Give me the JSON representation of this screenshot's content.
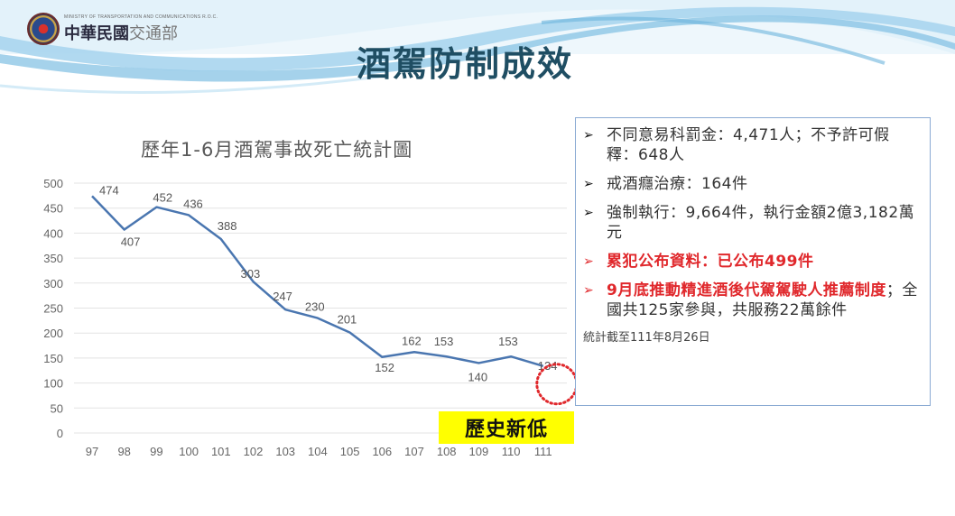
{
  "header": {
    "logo_en": "MINISTRY OF TRANSPORTATION AND COMMUNICATIONS R.O.C.",
    "logo_zh_main": "中華民國",
    "logo_zh_sub": "交通部",
    "title": "酒駕防制成效"
  },
  "chart_data": {
    "type": "line",
    "title": "歷年1-6月酒駕事故死亡統計圖",
    "categories": [
      "97",
      "98",
      "99",
      "100",
      "101",
      "102",
      "103",
      "104",
      "105",
      "106",
      "107",
      "108",
      "109",
      "110",
      "111"
    ],
    "values": [
      474,
      407,
      452,
      436,
      388,
      303,
      247,
      230,
      201,
      152,
      162,
      153,
      140,
      153,
      134
    ],
    "yticks": [
      0,
      50,
      100,
      150,
      200,
      250,
      300,
      350,
      400,
      450,
      500
    ],
    "ylim": [
      0,
      500
    ],
    "xlabel": "",
    "ylabel": "",
    "grid": true,
    "line_color": "#4a76b0",
    "highlight": {
      "category": "111",
      "value": 134,
      "style": "red dotted circle"
    },
    "annotation": "歷史新低"
  },
  "chart": {
    "title": "歷年1-6月酒駕事故死亡統計圖",
    "badge": "歷史新低",
    "y_labels": [
      "500",
      "450",
      "400",
      "350",
      "300",
      "250",
      "200",
      "150",
      "100",
      "50",
      "0"
    ],
    "x_labels": [
      "97",
      "98",
      "99",
      "100",
      "101",
      "102",
      "103",
      "104",
      "105",
      "106",
      "107",
      "108",
      "109",
      "110",
      "111"
    ],
    "point_labels": [
      "474",
      "407",
      "452",
      "436",
      "388",
      "303",
      "247",
      "230",
      "201",
      "152",
      "162",
      "153",
      "140",
      "153",
      "134"
    ]
  },
  "info": {
    "items": [
      {
        "arrow": "➢",
        "text": "不同意易科罰金：4,471人；不予許可假釋：648人"
      },
      {
        "arrow": "➢",
        "text": "戒酒癮治療：164件"
      },
      {
        "arrow": "➢",
        "text": "強制執行：9,664件，執行金額2億3,182萬元"
      },
      {
        "arrow": "➢",
        "text": "累犯公布資料：已公布499件"
      },
      {
        "arrow": "➢",
        "text_red": "9月底推動精進酒後代駕駕駛人推薦制度",
        "text_rest": "；全國共125家參與，共服務22萬餘件"
      }
    ],
    "note": "統計截至111年8月26日"
  },
  "colors": {
    "title": "#1f4e63",
    "line": "#4a76b0",
    "highlight_red": "#e0282c",
    "badge_bg": "#ffff00",
    "box_border": "#8aaad3"
  }
}
